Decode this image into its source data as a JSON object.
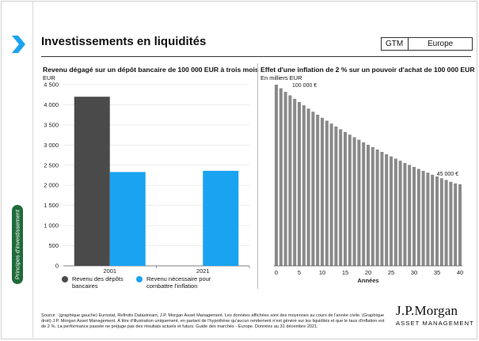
{
  "header": {
    "title": "Investissements en liquidités",
    "gtm_label": "GTM",
    "region": "Europe"
  },
  "sidebar": {
    "section_label": "Principes d'investissement"
  },
  "chart_data": [
    {
      "type": "bar",
      "title": "Revenu dégagé sur un dépôt bancaire de 100 000 EUR à trois mois",
      "ylabel": "EUR",
      "categories": [
        "2001",
        "2021"
      ],
      "ylim": [
        0,
        4500
      ],
      "yticks": [
        0,
        500,
        1000,
        1500,
        2000,
        2500,
        3000,
        3500,
        4000,
        4500
      ],
      "ytick_labels": [
        "0",
        "500",
        "1 000",
        "1 500",
        "2 000",
        "2 500",
        "3 000",
        "3 500",
        "4 000",
        "4 500"
      ],
      "series": [
        {
          "name": "Revenu des dépôts bancaires",
          "color": "#4a4a4a",
          "values": [
            4200,
            null
          ]
        },
        {
          "name": "Revenu nécessaire pour combattre l'inflation",
          "color": "#1aa3f0",
          "values": [
            2330,
            2360
          ]
        }
      ],
      "legend": [
        "Revenu des dépôts bancaires",
        "Revenu nécessaire pour combattre l'inflation"
      ]
    },
    {
      "type": "bar",
      "title": "Effet d'une inflation de 2 % sur un pouvoir d'achat de 100 000 EUR",
      "ylabel": "En milliers EUR",
      "xlabel": "Années",
      "xlim": [
        0,
        40
      ],
      "xticks": [
        0,
        5,
        10,
        15,
        20,
        25,
        30,
        35,
        40
      ],
      "ylim": [
        0,
        100
      ],
      "color": "#8a8a8a",
      "x": [
        0,
        1,
        2,
        3,
        4,
        5,
        6,
        7,
        8,
        9,
        10,
        11,
        12,
        13,
        14,
        15,
        16,
        17,
        18,
        19,
        20,
        21,
        22,
        23,
        24,
        25,
        26,
        27,
        28,
        29,
        30,
        31,
        32,
        33,
        34,
        35,
        36,
        37,
        38,
        39,
        40
      ],
      "values": [
        100,
        98,
        96,
        94.1,
        92.2,
        90.4,
        88.6,
        86.8,
        85.1,
        83.4,
        81.7,
        80.1,
        78.5,
        76.9,
        75.4,
        73.9,
        72.4,
        71,
        69.6,
        68.2,
        66.8,
        65.5,
        64.2,
        62.9,
        61.6,
        60.4,
        59.2,
        58,
        56.8,
        55.7,
        54.6,
        53.5,
        52.4,
        51.4,
        50.3,
        49.3,
        48.3,
        47.4,
        46.4,
        45.5,
        45
      ],
      "annotations": [
        {
          "x": 0,
          "y": 100,
          "text": "100 000 €"
        },
        {
          "x": 40,
          "y": 45,
          "text": "45 000 €"
        }
      ]
    }
  ],
  "footer": {
    "source": "Source : (graphique gauche) Eurostat, Refinitiv Datastream, J.P. Morgan Asset Management. Les données affichées sont des moyennes au cours de l'année civile. (Graphique droit) J.P. Morgan Asset Management. À titre d'illustration uniquement, en partant de l'hypothèse qu'aucun rendement n'est généré sur les liquidités et que le taux d'inflation est de 2 %. La performance passée ne préjuge pas des résultats actuels et futurs. Guide des marchés - Europe. Données au 31 décembre 2021.",
    "logo_name": "J.P.Morgan",
    "logo_sub": "ASSET MANAGEMENT"
  }
}
